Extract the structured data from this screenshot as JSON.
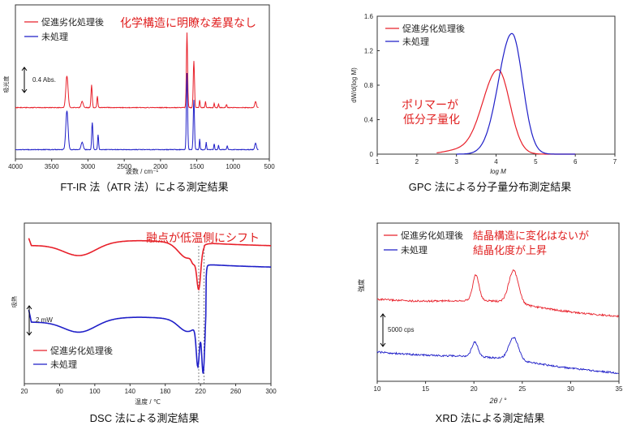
{
  "colors": {
    "red": "#e8202a",
    "blue": "#1f1fc8",
    "annot": "#e02020",
    "axis": "#333333"
  },
  "chart_data": [
    {
      "id": "ftir",
      "type": "line",
      "caption": "FT-IR 法（ATR 法）による測定結果",
      "annotation": "化学構造に明瞭な差異なし",
      "xlabel": "波数 / cm⁻¹",
      "ylabel": "吸光度",
      "xlim": [
        4000,
        500
      ],
      "xticks": [
        4000,
        3500,
        3000,
        2500,
        2000,
        1500,
        1000,
        500
      ],
      "scalebar": "0.4 Abs.",
      "legend": [
        "促進劣化処理後",
        "未処理"
      ],
      "series": [
        {
          "name": "促進劣化処理後",
          "color": "red",
          "baseline": 0.62,
          "peaks": [
            [
              3290,
              0.42,
              22
            ],
            [
              3080,
              0.08,
              20
            ],
            [
              2950,
              0.3,
              12
            ],
            [
              2870,
              0.15,
              10
            ],
            [
              1635,
              1.0,
              12
            ],
            [
              1540,
              0.62,
              12
            ],
            [
              1460,
              0.1,
              8
            ],
            [
              1380,
              0.08,
              8
            ],
            [
              1260,
              0.06,
              8
            ],
            [
              1200,
              0.05,
              8
            ],
            [
              1090,
              0.04,
              10
            ],
            [
              690,
              0.08,
              15
            ]
          ]
        },
        {
          "name": "未処理",
          "color": "blue",
          "baseline": 0.06,
          "peaks": [
            [
              3290,
              0.52,
              22
            ],
            [
              3080,
              0.1,
              20
            ],
            [
              2940,
              0.36,
              12
            ],
            [
              2860,
              0.2,
              10
            ],
            [
              1635,
              1.02,
              12
            ],
            [
              1540,
              0.66,
              12
            ],
            [
              1460,
              0.14,
              8
            ],
            [
              1370,
              0.1,
              8
            ],
            [
              1260,
              0.08,
              8
            ],
            [
              1200,
              0.06,
              8
            ],
            [
              1080,
              0.05,
              10
            ],
            [
              690,
              0.09,
              15
            ]
          ]
        }
      ]
    },
    {
      "id": "gpc",
      "type": "line",
      "caption": "GPC 法による分子量分布測定結果",
      "annotation": [
        "ポリマーが",
        "低分子量化"
      ],
      "xlabel": "log M",
      "ylabel": "dW/d(log M)",
      "xlim": [
        1,
        7
      ],
      "ylim": [
        0,
        1.6
      ],
      "xticks": [
        1,
        2,
        3,
        4,
        5,
        6,
        7
      ],
      "yticks": [
        0,
        0.4,
        0.8,
        1.2,
        1.6
      ],
      "legend": [
        "促進劣化処理後",
        "未処理"
      ],
      "series": [
        {
          "name": "促進劣化処理後",
          "color": "red",
          "peak_x": 4.05,
          "peak_y": 0.98,
          "start": 2.5,
          "end": 6.0
        },
        {
          "name": "未処理",
          "color": "blue",
          "peak_x": 4.4,
          "peak_y": 1.4,
          "start": 3.0,
          "end": 6.0
        }
      ]
    },
    {
      "id": "dsc",
      "type": "line",
      "caption": "DSC 法による測定結果",
      "annotation": "融点が低温側にシフト",
      "xlabel": "温度 / ℃",
      "ylabel": "吸熱",
      "xlim": [
        20,
        300
      ],
      "xticks": [
        20,
        60,
        100,
        140,
        180,
        220,
        260,
        300
      ],
      "scalebar": "2 mW",
      "legend": [
        "促進劣化処理後",
        "未処理"
      ],
      "markers": [
        218,
        224
      ],
      "series": [
        {
          "name": "促進劣化処理後",
          "color": "red",
          "start_level": 0.86
        },
        {
          "name": "未処理",
          "color": "blue",
          "start_level": 0.56
        }
      ]
    },
    {
      "id": "xrd",
      "type": "line",
      "caption": "XRD 法による測定結果",
      "annotation": [
        "結晶構造に変化はないが",
        "結晶化度が上昇"
      ],
      "xlabel": "2θ / °",
      "ylabel": "強度",
      "xlim": [
        10,
        35
      ],
      "xticks": [
        10,
        15,
        20,
        25,
        30,
        35
      ],
      "scalebar": "5000 cps",
      "legend": [
        "促進劣化処理後",
        "未処理"
      ],
      "series": [
        {
          "name": "促進劣化処理後",
          "color": "red",
          "peaks": [
            [
              20.2,
              0.7
            ],
            [
              24.1,
              0.9
            ]
          ]
        },
        {
          "name": "未処理",
          "color": "blue",
          "peaks": [
            [
              20.1,
              0.4
            ],
            [
              24.1,
              0.62
            ]
          ]
        }
      ]
    }
  ]
}
